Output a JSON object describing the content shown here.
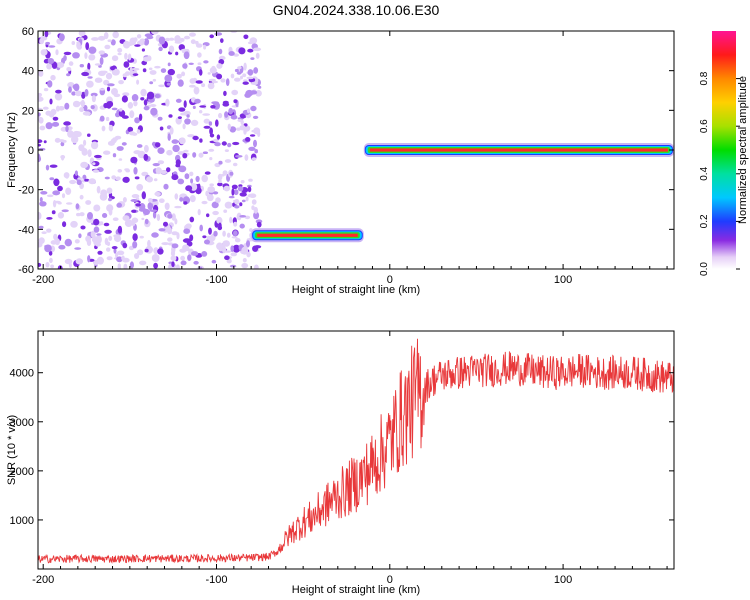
{
  "figure": {
    "title": "GN04.2024.338.10.06.E30"
  },
  "chart_data": [
    {
      "type": "heatmap",
      "xlabel": "Height of straight line (km)",
      "ylabel": "Frequency (Hz)",
      "xlim": [
        -203,
        164
      ],
      "ylim": [
        -60,
        60
      ],
      "xticks": [
        "-200",
        "-100",
        "0",
        "100"
      ],
      "xtick_values": [
        -200,
        -100,
        0,
        100
      ],
      "yticks": [
        "60",
        "40",
        "20",
        "0",
        "-20",
        "-40",
        "-60"
      ],
      "ytick_values": [
        60,
        40,
        20,
        0,
        -20,
        -40,
        -60
      ],
      "colorbar": {
        "label": "Normalized spectral amplitude",
        "range": [
          0,
          1
        ],
        "ticks": [
          "0.0",
          "0.2",
          "0.4",
          "0.6",
          "0.8"
        ],
        "tick_values": [
          0.0,
          0.2,
          0.4,
          0.6,
          0.8
        ]
      },
      "noise_region": {
        "x": [
          -203,
          -75
        ],
        "y": [
          -60,
          60
        ],
        "amplitude": [
          0.0,
          0.12
        ]
      },
      "segments": [
        {
          "x_start": -80,
          "x_end": -15,
          "frequency": -43,
          "amplitude": 0.95
        },
        {
          "x_start": -15,
          "x_end": 164,
          "frequency": 0,
          "amplitude": 0.98
        }
      ]
    },
    {
      "type": "line",
      "xlabel": "Height of straight line (km)",
      "ylabel": "SNR (10 * v/v)",
      "xlim": [
        -203,
        164
      ],
      "ylim": [
        0,
        4850
      ],
      "xticks": [
        "-200",
        "-100",
        "0",
        "100"
      ],
      "xtick_values": [
        -200,
        -100,
        0,
        100
      ],
      "yticks": [
        "1000",
        "2000",
        "3000",
        "4000"
      ],
      "ytick_values": [
        1000,
        2000,
        3000,
        4000
      ],
      "series": [
        {
          "color": "#e8383a",
          "x": [
            -203,
            -180,
            -160,
            -140,
            -120,
            -100,
            -80,
            -70,
            -65,
            -60,
            -55,
            -50,
            -45,
            -40,
            -35,
            -30,
            -25,
            -20,
            -15,
            -10,
            -5,
            0,
            5,
            10,
            15,
            20,
            25,
            30,
            40,
            50,
            60,
            70,
            80,
            90,
            100,
            110,
            120,
            130,
            140,
            150,
            160,
            164
          ],
          "values": [
            200,
            210,
            205,
            215,
            210,
            220,
            230,
            250,
            350,
            600,
            800,
            950,
            1050,
            1200,
            1350,
            1500,
            1600,
            1750,
            1900,
            2100,
            2350,
            2600,
            2950,
            3250,
            3500,
            3700,
            3850,
            3950,
            4000,
            4050,
            4050,
            4100,
            4050,
            4000,
            4000,
            4050,
            4000,
            4000,
            4000,
            3950,
            3900,
            3900
          ]
        }
      ]
    }
  ]
}
